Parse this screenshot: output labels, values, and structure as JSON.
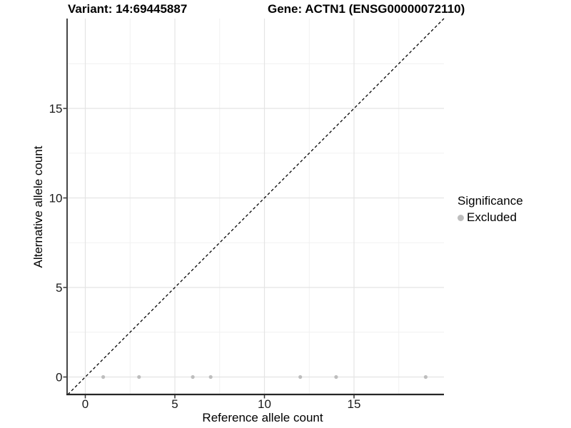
{
  "chart_data": {
    "type": "scatter",
    "title_left": "Variant: 14:69445887",
    "title_right": "Gene: ACTN1 (ENSG00000072110)",
    "xlabel": "Reference allele count",
    "ylabel": "Alternative allele count",
    "xlim": [
      -1.0,
      20.0
    ],
    "ylim": [
      -1.0,
      20.0
    ],
    "x_ticks": [
      0,
      5,
      10,
      15
    ],
    "y_ticks": [
      0,
      5,
      10,
      15
    ],
    "x_minor_ticks": [
      2.5,
      7.5,
      12.5,
      17.5
    ],
    "y_minor_ticks": [
      2.5,
      7.5,
      12.5,
      17.5
    ],
    "grid": "major+minor",
    "series": [
      {
        "name": "Excluded",
        "points": [
          {
            "x": 1,
            "y": 0
          },
          {
            "x": 3,
            "y": 0
          },
          {
            "x": 6,
            "y": 0
          },
          {
            "x": 7,
            "y": 0
          },
          {
            "x": 12,
            "y": 0
          },
          {
            "x": 14,
            "y": 0
          },
          {
            "x": 19,
            "y": 0
          }
        ]
      }
    ],
    "reference_line": {
      "equation": "y = x",
      "style": "dashed"
    },
    "legend": {
      "position": "right",
      "title": "Significance",
      "items": [
        {
          "label": "Excluded",
          "color": "#bebebe"
        }
      ]
    },
    "colors": {
      "points": "#bebebe",
      "grid_major": "#e4e4e4",
      "grid_minor": "#f1f1f1",
      "axis_line": "#262626",
      "tick_mark": "#333333",
      "tick_text": "#1a1a1a",
      "reference_line": "#000000"
    }
  }
}
